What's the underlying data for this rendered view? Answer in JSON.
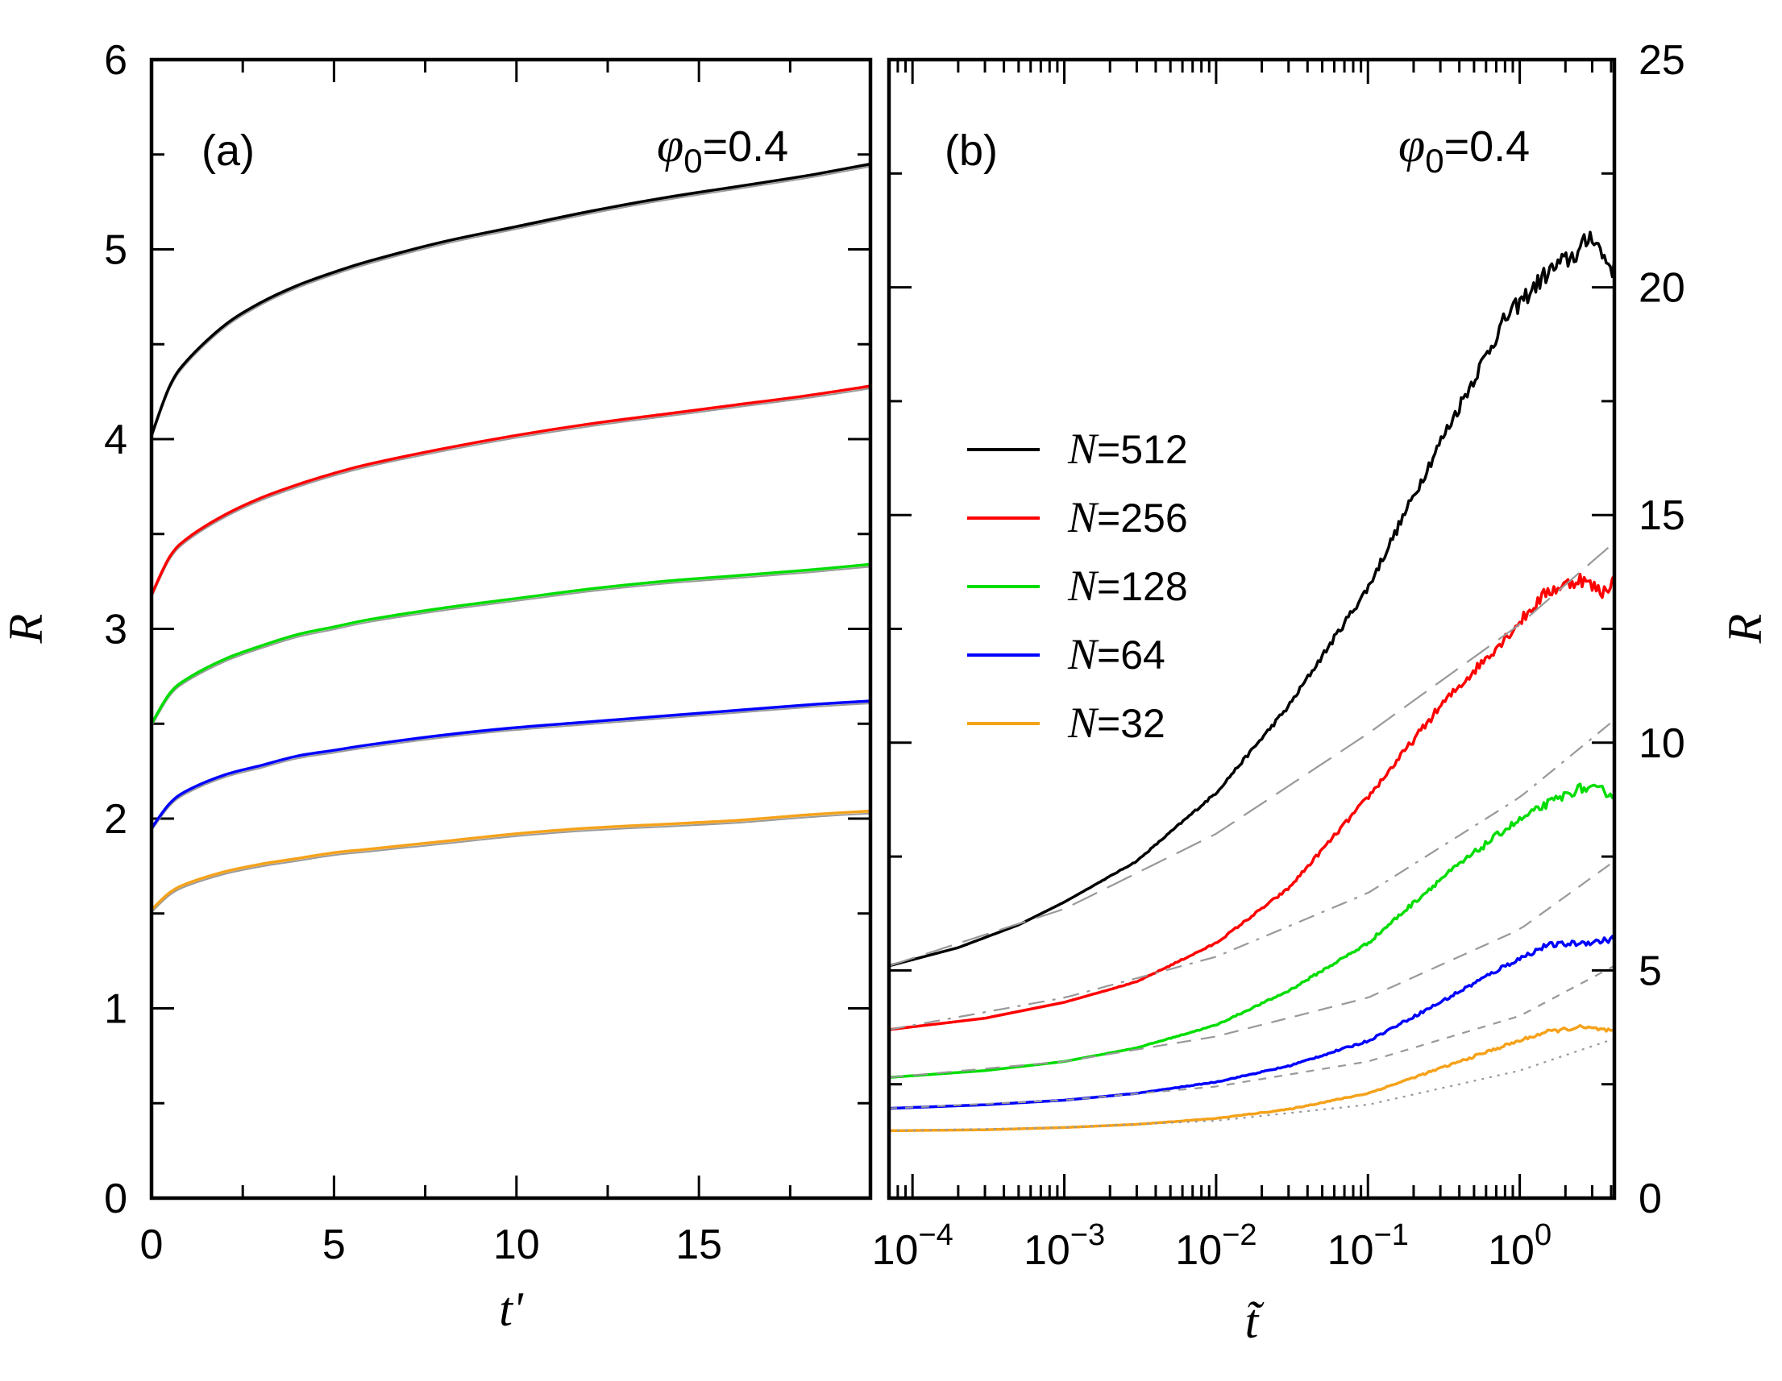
{
  "chart_data": [
    {
      "panel": "(a)",
      "type": "line",
      "annotation": {
        "symbol": "φ",
        "subscript": "0",
        "value": "=0.4"
      },
      "xlabel": "t'",
      "ylabel": "R",
      "xlim": [
        0,
        19.7
      ],
      "ylim": [
        0,
        6
      ],
      "xticks": [
        0,
        5,
        10,
        15
      ],
      "yticks": [
        0,
        1,
        2,
        3,
        4,
        5,
        6
      ],
      "series": [
        {
          "name": "N=512",
          "color": "#000000",
          "x": [
            0,
            0.5,
            1,
            2,
            3,
            4,
            5,
            6,
            8,
            10,
            12,
            14,
            16,
            18,
            19.7
          ],
          "values": [
            4.02,
            4.28,
            4.42,
            4.6,
            4.72,
            4.81,
            4.88,
            4.94,
            5.04,
            5.12,
            5.2,
            5.27,
            5.33,
            5.39,
            5.45
          ]
        },
        {
          "name": "N=256",
          "color": "#ff0000",
          "x": [
            0,
            0.5,
            1,
            2,
            3,
            4,
            5,
            6,
            8,
            10,
            12,
            14,
            16,
            18,
            19.7
          ],
          "values": [
            3.18,
            3.38,
            3.48,
            3.6,
            3.69,
            3.76,
            3.82,
            3.87,
            3.95,
            4.02,
            4.08,
            4.13,
            4.18,
            4.23,
            4.28
          ]
        },
        {
          "name": "N=128",
          "color": "#00dd00",
          "x": [
            0,
            0.5,
            1,
            2,
            3,
            4,
            5,
            6,
            8,
            10,
            12,
            14,
            16,
            18,
            19.7
          ],
          "values": [
            2.5,
            2.66,
            2.74,
            2.84,
            2.91,
            2.97,
            3.01,
            3.05,
            3.11,
            3.16,
            3.21,
            3.25,
            3.28,
            3.31,
            3.34
          ]
        },
        {
          "name": "N=64",
          "color": "#0000ff",
          "x": [
            0,
            0.5,
            1,
            2,
            3,
            4,
            5,
            6,
            8,
            10,
            12,
            14,
            16,
            18,
            19.7
          ],
          "values": [
            1.95,
            2.08,
            2.15,
            2.23,
            2.28,
            2.33,
            2.36,
            2.39,
            2.44,
            2.48,
            2.51,
            2.54,
            2.57,
            2.6,
            2.62
          ]
        },
        {
          "name": "N=32",
          "color": "#f5a21b",
          "x": [
            0,
            0.5,
            1,
            2,
            3,
            4,
            5,
            6,
            8,
            10,
            12,
            14,
            16,
            18,
            19.7
          ],
          "values": [
            1.52,
            1.61,
            1.66,
            1.72,
            1.76,
            1.79,
            1.82,
            1.84,
            1.88,
            1.92,
            1.95,
            1.97,
            1.99,
            2.02,
            2.04
          ]
        }
      ]
    },
    {
      "panel": "(b)",
      "type": "line",
      "xscale": "log",
      "annotation": {
        "symbol": "φ",
        "subscript": "0",
        "value": "=0.4"
      },
      "xlabel": "t̃",
      "ylabel": "R",
      "xlim": [
        7e-05,
        4.2
      ],
      "ylim": [
        0,
        25
      ],
      "xticks": [
        {
          "value": 0.0001,
          "base": "10",
          "exp": "−4"
        },
        {
          "value": 0.001,
          "base": "10",
          "exp": "−3"
        },
        {
          "value": 0.01,
          "base": "10",
          "exp": "−2"
        },
        {
          "value": 0.1,
          "base": "10",
          "exp": "−1"
        },
        {
          "value": 1,
          "base": "10",
          "exp": "0"
        }
      ],
      "yticks": [
        0,
        5,
        10,
        15,
        20,
        25
      ],
      "legend": {
        "position": "center-left",
        "entries": [
          {
            "symbol": "N",
            "text": "=512",
            "color": "#000000"
          },
          {
            "symbol": "N",
            "text": "=256",
            "color": "#ff0000"
          },
          {
            "symbol": "N",
            "text": "=128",
            "color": "#00dd00"
          },
          {
            "symbol": "N",
            "text": "=64",
            "color": "#0000ff"
          },
          {
            "symbol": "N",
            "text": "=32",
            "color": "#f5a21b"
          }
        ]
      },
      "series": [
        {
          "name": "N=512",
          "color": "#000000",
          "x": [
            7e-05,
            0.0002,
            0.0005,
            0.001,
            0.003,
            0.01,
            0.03,
            0.1,
            0.3,
            0.8,
            1.5,
            2.5,
            3.0,
            3.5,
            4.2
          ],
          "values": [
            5.1,
            5.5,
            6.0,
            6.5,
            7.4,
            8.9,
            10.8,
            13.4,
            16.6,
            19.3,
            20.3,
            20.8,
            21.2,
            20.7,
            20.4
          ]
        },
        {
          "name": "N=256",
          "color": "#ff0000",
          "x": [
            7e-05,
            0.0003,
            0.001,
            0.003,
            0.01,
            0.03,
            0.1,
            0.3,
            0.8,
            1.5,
            2.5,
            3.5,
            4.2
          ],
          "values": [
            3.7,
            3.95,
            4.3,
            4.75,
            5.6,
            6.8,
            8.8,
            10.8,
            12.3,
            13.3,
            13.6,
            13.3,
            13.6
          ]
        },
        {
          "name": "N=128",
          "color": "#00dd00",
          "x": [
            7e-05,
            0.0003,
            0.001,
            0.003,
            0.01,
            0.03,
            0.1,
            0.3,
            0.8,
            1.5,
            2.5,
            3.5,
            4.2
          ],
          "values": [
            2.65,
            2.8,
            3.0,
            3.3,
            3.8,
            4.55,
            5.6,
            7.0,
            8.1,
            8.65,
            9.0,
            8.95,
            8.85
          ]
        },
        {
          "name": "N=64",
          "color": "#0000ff",
          "x": [
            7e-05,
            0.0003,
            0.001,
            0.003,
            0.01,
            0.03,
            0.1,
            0.3,
            0.8,
            1.5,
            2.5,
            3.5,
            4.2
          ],
          "values": [
            1.97,
            2.05,
            2.15,
            2.3,
            2.55,
            2.9,
            3.45,
            4.3,
            5.1,
            5.55,
            5.6,
            5.65,
            5.7
          ]
        },
        {
          "name": "N=32",
          "color": "#f5a21b",
          "x": [
            7e-05,
            0.0003,
            0.001,
            0.003,
            0.01,
            0.03,
            0.1,
            0.3,
            0.8,
            1.5,
            2.5,
            3.5,
            4.2
          ],
          "values": [
            1.48,
            1.5,
            1.55,
            1.62,
            1.75,
            1.95,
            2.3,
            2.85,
            3.35,
            3.65,
            3.75,
            3.7,
            3.65
          ]
        },
        {
          "name": "fit N=512",
          "color": "#999999",
          "dash": "long",
          "x": [
            7e-05,
            0.001,
            0.01,
            0.1,
            1,
            4.2
          ],
          "values": [
            5.1,
            6.35,
            8.0,
            10.2,
            12.6,
            14.4
          ]
        },
        {
          "name": "fit N=256",
          "color": "#999999",
          "dash": "dashdot",
          "x": [
            7e-05,
            0.001,
            0.01,
            0.1,
            1,
            4.2
          ],
          "values": [
            3.7,
            4.4,
            5.3,
            6.7,
            8.8,
            10.5
          ]
        },
        {
          "name": "fit N=128",
          "color": "#999999",
          "dash": "medium",
          "x": [
            7e-05,
            0.001,
            0.01,
            0.1,
            1,
            4.2
          ],
          "values": [
            2.65,
            3.0,
            3.55,
            4.4,
            5.9,
            7.4
          ]
        },
        {
          "name": "fit N=64",
          "color": "#999999",
          "dash": "short",
          "x": [
            7e-05,
            0.001,
            0.01,
            0.1,
            1,
            4.2
          ],
          "values": [
            1.97,
            2.15,
            2.45,
            3.0,
            4.0,
            5.1
          ]
        },
        {
          "name": "fit N=32",
          "color": "#999999",
          "dash": "dotted",
          "x": [
            7e-05,
            0.001,
            0.01,
            0.1,
            1,
            4.2
          ],
          "values": [
            1.48,
            1.55,
            1.7,
            2.05,
            2.8,
            3.5
          ]
        }
      ]
    }
  ]
}
